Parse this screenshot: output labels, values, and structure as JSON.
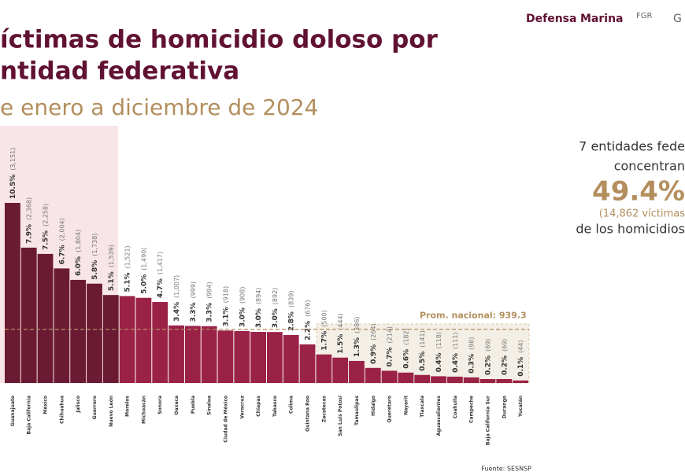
{
  "header": {
    "logos": [
      "Defensa",
      "Marina",
      "FGR",
      "G"
    ]
  },
  "chart_data": {
    "type": "bar",
    "title_lines": [
      "íctimas de homicidio doloso por",
      "ntidad federativa"
    ],
    "subtitle": "e enero a diciembre de 2024",
    "categories": [
      "Guanajuato",
      "Baja California",
      "México",
      "Chihuahua",
      "Jalisco",
      "Guerrero",
      "Nuevo León",
      "Morelos",
      "Michoacán",
      "Sonora",
      "Oaxaca",
      "Puebla",
      "Sinaloa",
      "Ciudad de México",
      "Veracruz",
      "Chiapas",
      "Tabasco",
      "Colima",
      "Quintana Roo",
      "Zacatecas",
      "San Luis Potosí",
      "Tamaulipas",
      "Hidalgo",
      "Querétaro",
      "Nayarit",
      "Tlaxcala",
      "Aguascalientes",
      "Coahuila",
      "Campeche",
      "Baja California Sur",
      "Durango",
      "Yucatán"
    ],
    "values": [
      3151,
      2368,
      2258,
      2004,
      1804,
      1738,
      1539,
      1521,
      1490,
      1417,
      1007,
      999,
      994,
      918,
      908,
      894,
      892,
      839,
      676,
      500,
      444,
      386,
      264,
      214,
      182,
      141,
      118,
      111,
      98,
      69,
      69,
      44
    ],
    "value_labels": [
      "(3,151)",
      "(2,368)",
      "(2,258)",
      "(2,004)",
      "(1,804)",
      "(1,738)",
      "(1,539)",
      "(1,521)",
      "(1,490)",
      "(1,417)",
      "(1,007)",
      "(999)",
      "(994)",
      "(918)",
      "(908)",
      "(894)",
      "(892)",
      "(839)",
      "(676)",
      "(500)",
      "(444)",
      "(386)",
      "(264)",
      "(214)",
      "(182)",
      "(141)",
      "(118)",
      "(111)",
      "(98)",
      "(69)",
      "(69)",
      "(44)"
    ],
    "share_labels": [
      "10.5%",
      "7.9%",
      "7.5%",
      "6.7%",
      "6.0%",
      "5.8%",
      "5.1%",
      "5.1%",
      "5.0%",
      "4.7%",
      "3.4%",
      "3.3%",
      "3.3%",
      "3.1%",
      "3.0%",
      "3.0%",
      "3.0%",
      "2.8%",
      "2.2%",
      "1.7%",
      "1.5%",
      "1.3%",
      "0.9%",
      "0.7%",
      "0.6%",
      "0.5%",
      "0.4%",
      "0.4%",
      "0.3%",
      "0.2%",
      "0.2%",
      "0.1%"
    ],
    "colors": [
      "#6b1a33",
      "#6b1a33",
      "#6b1a33",
      "#6b1a33",
      "#6b1a33",
      "#6b1a33",
      "#6b1a33",
      "#9b2247",
      "#9b2247",
      "#9b2247",
      "#9b2247",
      "#9b2247",
      "#9b2247",
      "#9b2247",
      "#9b2247",
      "#9b2247",
      "#9b2247",
      "#9b2247",
      "#9b2247",
      "#9b2247",
      "#9b2247",
      "#9b2247",
      "#9b2247",
      "#9b2247",
      "#9b2247",
      "#9b2247",
      "#9b2247",
      "#9b2247",
      "#9b2247",
      "#9b2247",
      "#9b2247",
      "#9b2247"
    ],
    "ylim": [
      0,
      3151
    ],
    "average": 939.3,
    "average_label": "Prom. nacional: 939.3",
    "average_color": "#b38e5d",
    "note": {
      "lines": [
        "7 entidades fede",
        "concentran",
        "49.4%",
        "(14,862 víctimas",
        "de los homicidios"
      ]
    },
    "source": "Fuente: SESNSP"
  }
}
